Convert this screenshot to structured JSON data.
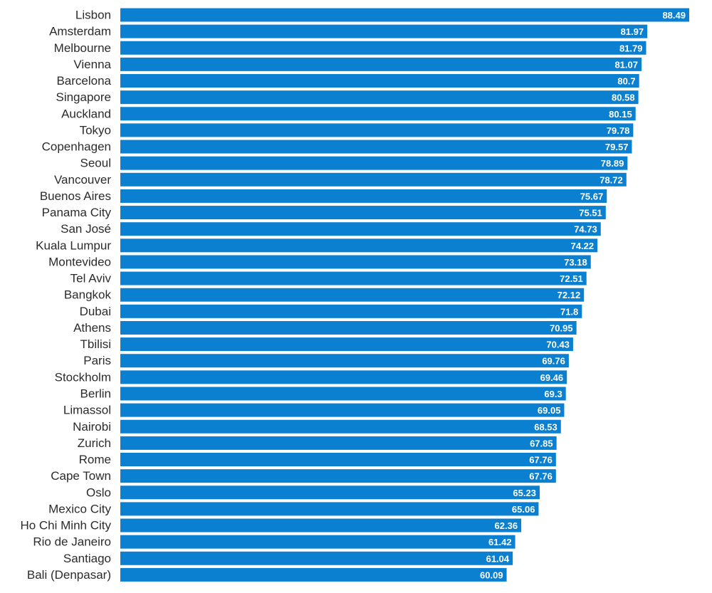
{
  "chart_data": {
    "type": "bar",
    "orientation": "horizontal",
    "title": "",
    "xlabel": "",
    "ylabel": "",
    "xlim": [
      0,
      88.49
    ],
    "grid": false,
    "legend": "none",
    "bar_color": "#0b80d0",
    "categories": [
      "Lisbon",
      "Amsterdam",
      "Melbourne",
      "Vienna",
      "Barcelona",
      "Singapore",
      "Auckland",
      "Tokyo",
      "Copenhagen",
      "Seoul",
      "Vancouver",
      "Buenos Aires",
      "Panama City",
      "San José",
      "Kuala Lumpur",
      "Montevideo",
      "Tel Aviv",
      "Bangkok",
      "Dubai",
      "Athens",
      "Tbilisi",
      "Paris",
      "Stockholm",
      "Berlin",
      "Limassol",
      "Nairobi",
      "Zurich",
      "Rome",
      "Cape Town",
      "Oslo",
      "Mexico City",
      "Ho Chi Minh City",
      "Rio de Janeiro",
      "Santiago",
      "Bali (Denpasar)"
    ],
    "values": [
      88.49,
      81.97,
      81.79,
      81.07,
      80.7,
      80.58,
      80.15,
      79.78,
      79.57,
      78.89,
      78.72,
      75.67,
      75.51,
      74.73,
      74.22,
      73.18,
      72.51,
      72.12,
      71.8,
      70.95,
      70.43,
      69.76,
      69.46,
      69.3,
      69.05,
      68.53,
      67.85,
      67.76,
      67.76,
      65.23,
      65.06,
      62.36,
      61.42,
      61.04,
      60.09
    ],
    "value_labels": [
      "88.49",
      "81.97",
      "81.79",
      "81.07",
      "80.7",
      "80.58",
      "80.15",
      "79.78",
      "79.57",
      "78.89",
      "78.72",
      "75.67",
      "75.51",
      "74.73",
      "74.22",
      "73.18",
      "72.51",
      "72.12",
      "71.8",
      "70.95",
      "70.43",
      "69.76",
      "69.46",
      "69.3",
      "69.05",
      "68.53",
      "67.85",
      "67.76",
      "67.76",
      "65.23",
      "65.06",
      "62.36",
      "61.42",
      "61.04",
      "60.09"
    ]
  }
}
